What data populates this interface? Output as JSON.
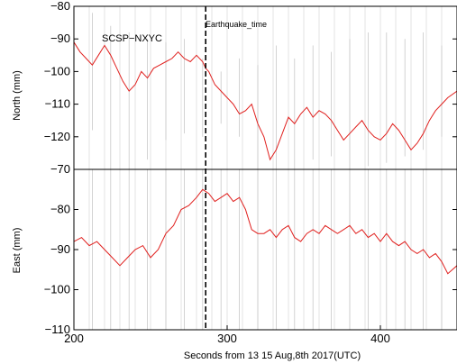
{
  "chart_data": [
    {
      "type": "line",
      "panel": "top",
      "ylabel": "North (mm)",
      "annotation": "SCSP−NXYC",
      "event_label": "Earthquake_time",
      "event_x": 286,
      "xlim": [
        200,
        450
      ],
      "ylim": [
        -130,
        -80
      ],
      "yticks": [
        "−80",
        "−90",
        "−100",
        "−110",
        "−120",
        "−130"
      ],
      "ytick_values": [
        -80,
        -90,
        -100,
        -110,
        -120,
        -130
      ],
      "grid": "vertical",
      "line_color": "#e0201e",
      "series_points": [
        [
          200,
          -91
        ],
        [
          204,
          -94
        ],
        [
          208,
          -96
        ],
        [
          212,
          -98
        ],
        [
          216,
          -95
        ],
        [
          220,
          -92
        ],
        [
          224,
          -95
        ],
        [
          228,
          -99
        ],
        [
          232,
          -103
        ],
        [
          236,
          -106
        ],
        [
          240,
          -104
        ],
        [
          244,
          -100
        ],
        [
          248,
          -102
        ],
        [
          252,
          -99
        ],
        [
          256,
          -98
        ],
        [
          260,
          -97
        ],
        [
          264,
          -96
        ],
        [
          268,
          -94
        ],
        [
          272,
          -96
        ],
        [
          276,
          -97
        ],
        [
          280,
          -95
        ],
        [
          284,
          -97
        ],
        [
          286,
          -99
        ],
        [
          288,
          -100
        ],
        [
          292,
          -104
        ],
        [
          296,
          -106
        ],
        [
          300,
          -108
        ],
        [
          304,
          -110
        ],
        [
          308,
          -113
        ],
        [
          312,
          -112
        ],
        [
          316,
          -110
        ],
        [
          320,
          -116
        ],
        [
          324,
          -120
        ],
        [
          328,
          -127
        ],
        [
          332,
          -124
        ],
        [
          336,
          -119
        ],
        [
          340,
          -114
        ],
        [
          344,
          -116
        ],
        [
          348,
          -113
        ],
        [
          352,
          -111
        ],
        [
          356,
          -114
        ],
        [
          360,
          -112
        ],
        [
          364,
          -113
        ],
        [
          368,
          -115
        ],
        [
          372,
          -118
        ],
        [
          376,
          -121
        ],
        [
          380,
          -119
        ],
        [
          384,
          -117
        ],
        [
          388,
          -115
        ],
        [
          392,
          -118
        ],
        [
          396,
          -120
        ],
        [
          400,
          -121
        ],
        [
          404,
          -119
        ],
        [
          408,
          -116
        ],
        [
          412,
          -118
        ],
        [
          416,
          -121
        ],
        [
          420,
          -124
        ],
        [
          424,
          -122
        ],
        [
          428,
          -119
        ],
        [
          432,
          -115
        ],
        [
          436,
          -112
        ],
        [
          440,
          -110
        ],
        [
          444,
          -108
        ],
        [
          450,
          -106
        ]
      ],
      "error_bars": [
        [
          212,
          -118,
          -82
        ],
        [
          224,
          -132,
          -86
        ],
        [
          236,
          -130,
          -88
        ],
        [
          248,
          -127,
          -90
        ],
        [
          260,
          -121,
          -91
        ],
        [
          272,
          -119,
          -90
        ],
        [
          284,
          -120,
          -96
        ],
        [
          296,
          -116,
          -100
        ],
        [
          308,
          -120,
          -96
        ],
        [
          320,
          -130,
          -98
        ],
        [
          332,
          -133,
          -92
        ],
        [
          344,
          -131,
          -96
        ],
        [
          356,
          -127,
          -92
        ],
        [
          368,
          -126,
          -94
        ],
        [
          380,
          -130,
          -90
        ],
        [
          392,
          -129,
          -88
        ],
        [
          404,
          -128,
          -88
        ],
        [
          416,
          -126,
          -90
        ],
        [
          428,
          -124,
          -88
        ],
        [
          440,
          -120,
          -92
        ]
      ]
    },
    {
      "type": "line",
      "panel": "bottom",
      "ylabel": "East (mm)",
      "xlabel": "Seconds from 13 15 Aug,8th 2017(UTC)",
      "xlim": [
        200,
        450
      ],
      "ylim": [
        -110,
        -70
      ],
      "xticks": [
        "200",
        "300",
        "400"
      ],
      "xtick_values": [
        200,
        300,
        400
      ],
      "yticks": [
        "−70",
        "−80",
        "−90",
        "−100",
        "−110"
      ],
      "ytick_values": [
        -70,
        -80,
        -90,
        -100,
        -110
      ],
      "grid": "vertical",
      "line_color": "#e0201e",
      "series_points": [
        [
          200,
          -88
        ],
        [
          205,
          -87
        ],
        [
          210,
          -89
        ],
        [
          215,
          -88
        ],
        [
          220,
          -90
        ],
        [
          225,
          -92
        ],
        [
          230,
          -94
        ],
        [
          235,
          -92
        ],
        [
          240,
          -90
        ],
        [
          245,
          -89
        ],
        [
          250,
          -92
        ],
        [
          255,
          -90
        ],
        [
          260,
          -86
        ],
        [
          265,
          -84
        ],
        [
          270,
          -80
        ],
        [
          275,
          -79
        ],
        [
          280,
          -77
        ],
        [
          284,
          -75
        ],
        [
          288,
          -76
        ],
        [
          292,
          -78
        ],
        [
          296,
          -77
        ],
        [
          300,
          -76
        ],
        [
          304,
          -78
        ],
        [
          308,
          -77
        ],
        [
          312,
          -80
        ],
        [
          316,
          -85
        ],
        [
          320,
          -86
        ],
        [
          324,
          -86
        ],
        [
          328,
          -85
        ],
        [
          332,
          -87
        ],
        [
          336,
          -85
        ],
        [
          340,
          -84
        ],
        [
          344,
          -87
        ],
        [
          348,
          -88
        ],
        [
          352,
          -86
        ],
        [
          356,
          -85
        ],
        [
          360,
          -86
        ],
        [
          364,
          -84
        ],
        [
          368,
          -85
        ],
        [
          372,
          -86
        ],
        [
          376,
          -85
        ],
        [
          380,
          -84
        ],
        [
          384,
          -86
        ],
        [
          388,
          -85
        ],
        [
          392,
          -87
        ],
        [
          396,
          -86
        ],
        [
          400,
          -88
        ],
        [
          404,
          -86
        ],
        [
          408,
          -88
        ],
        [
          412,
          -89
        ],
        [
          416,
          -88
        ],
        [
          420,
          -90
        ],
        [
          424,
          -91
        ],
        [
          428,
          -90
        ],
        [
          432,
          -92
        ],
        [
          436,
          -91
        ],
        [
          440,
          -93
        ],
        [
          444,
          -96
        ],
        [
          450,
          -94
        ]
      ],
      "error_bars": [
        [
          212,
          -112,
          -70
        ],
        [
          224,
          -112,
          -70
        ],
        [
          236,
          -112,
          -70
        ],
        [
          248,
          -112,
          -70
        ],
        [
          260,
          -112,
          -70
        ],
        [
          272,
          -112,
          -70
        ],
        [
          284,
          -112,
          -70
        ],
        [
          296,
          -112,
          -70
        ],
        [
          308,
          -112,
          -70
        ],
        [
          320,
          -112,
          -70
        ],
        [
          332,
          -112,
          -70
        ],
        [
          344,
          -112,
          -70
        ],
        [
          356,
          -112,
          -70
        ],
        [
          368,
          -112,
          -70
        ],
        [
          380,
          -112,
          -70
        ],
        [
          392,
          -112,
          -70
        ],
        [
          404,
          -112,
          -70
        ],
        [
          416,
          -112,
          -70
        ],
        [
          428,
          -112,
          -70
        ],
        [
          440,
          -112,
          -70
        ]
      ]
    }
  ]
}
